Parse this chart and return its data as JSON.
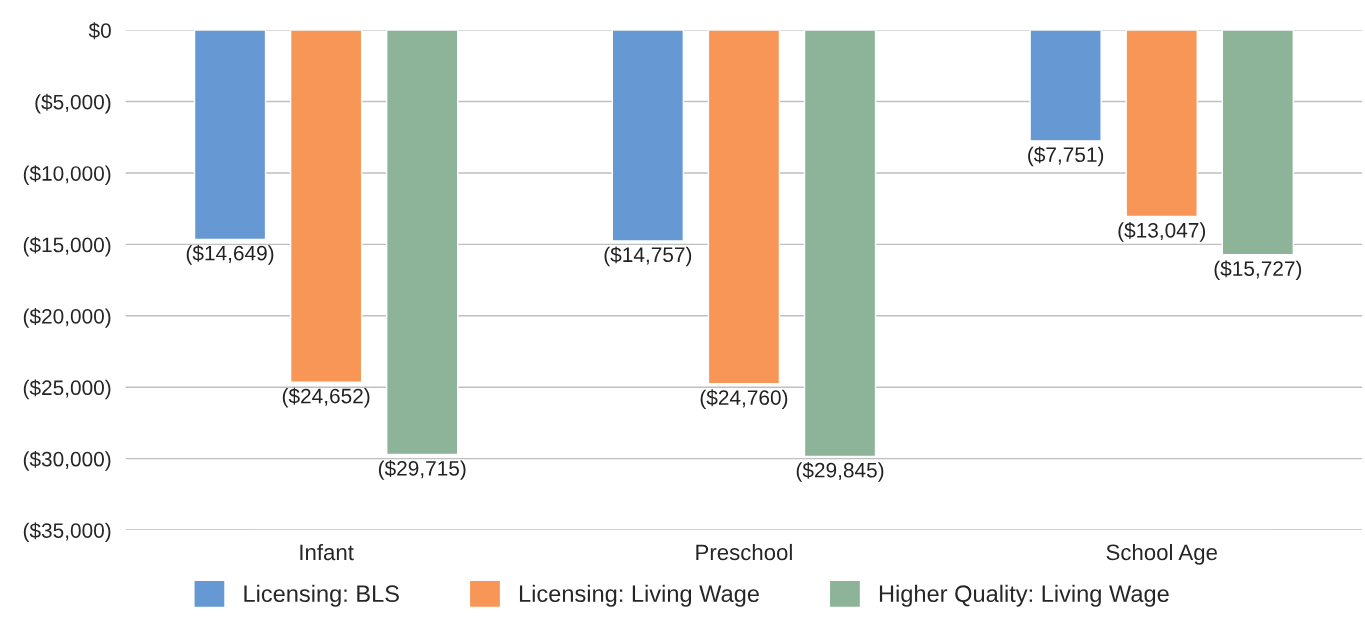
{
  "chart_data": {
    "type": "bar",
    "categories": [
      "Infant",
      "Preschool",
      "School Age"
    ],
    "series": [
      {
        "name": "Licensing: BLS",
        "color": "#6699d3",
        "values": [
          -14649,
          -14757,
          -7751
        ],
        "value_labels": [
          "($14,649)",
          "($14,757)",
          "($7,751)"
        ]
      },
      {
        "name": "Licensing: Living Wage",
        "color": "#f79656",
        "values": [
          -24652,
          -24760,
          -13047
        ],
        "value_labels": [
          "($24,652)",
          "($24,760)",
          "($13,047)"
        ]
      },
      {
        "name": "Higher Quality: Living Wage",
        "color": "#8db398",
        "values": [
          -29715,
          -29845,
          -15727
        ],
        "value_labels": [
          "($29,715)",
          "($29,845)",
          "($15,727)"
        ]
      }
    ],
    "ylim": [
      -35000,
      0
    ],
    "yticks": [
      {
        "value": -35000,
        "label": "($35,000)"
      },
      {
        "value": -30000,
        "label": "($30,000)"
      },
      {
        "value": -25000,
        "label": "($25,000)"
      },
      {
        "value": -20000,
        "label": "($20,000)"
      },
      {
        "value": -15000,
        "label": "($15,000)"
      },
      {
        "value": -10000,
        "label": "($10,000)"
      },
      {
        "value": -5000,
        "label": "($5,000)"
      },
      {
        "value": 0,
        "label": "$0"
      }
    ],
    "grid": "y",
    "legend": "bottom"
  }
}
